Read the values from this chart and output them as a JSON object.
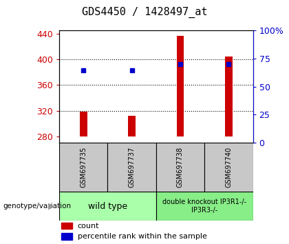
{
  "title": "GDS4450 / 1428497_at",
  "samples": [
    "GSM697735",
    "GSM697737",
    "GSM697738",
    "GSM697740"
  ],
  "bar_bottom": 280,
  "counts": [
    318,
    312,
    437,
    404
  ],
  "percentile_ranks": [
    383,
    383,
    393,
    393
  ],
  "ylim_left": [
    270,
    445
  ],
  "left_ticks": [
    280,
    320,
    360,
    400,
    440
  ],
  "right_ticks": [
    0,
    25,
    50,
    75,
    100
  ],
  "right_tick_labels": [
    "0",
    "25",
    "50",
    "75",
    "100%"
  ],
  "bar_color": "#cc0000",
  "dot_color": "#0000cc",
  "bg_color": "#ffffff",
  "plot_bg": "#ffffff",
  "group1_label": "wild type",
  "group2_label": "double knockout IP3R1-/-\nIP3R3-/-",
  "group1_color": "#aaffaa",
  "group2_color": "#88ee88",
  "xlabel_left_color": "#cc0000",
  "xlabel_right_color": "#0000cc",
  "genotype_label": "genotype/variation",
  "legend_count": "count",
  "legend_percentile": "percentile rank within the sample",
  "bar_width": 0.15,
  "dot_size": 5,
  "title_fontsize": 11,
  "tick_fontsize": 9,
  "sample_fontsize": 7,
  "group_fontsize": 8,
  "legend_fontsize": 8
}
